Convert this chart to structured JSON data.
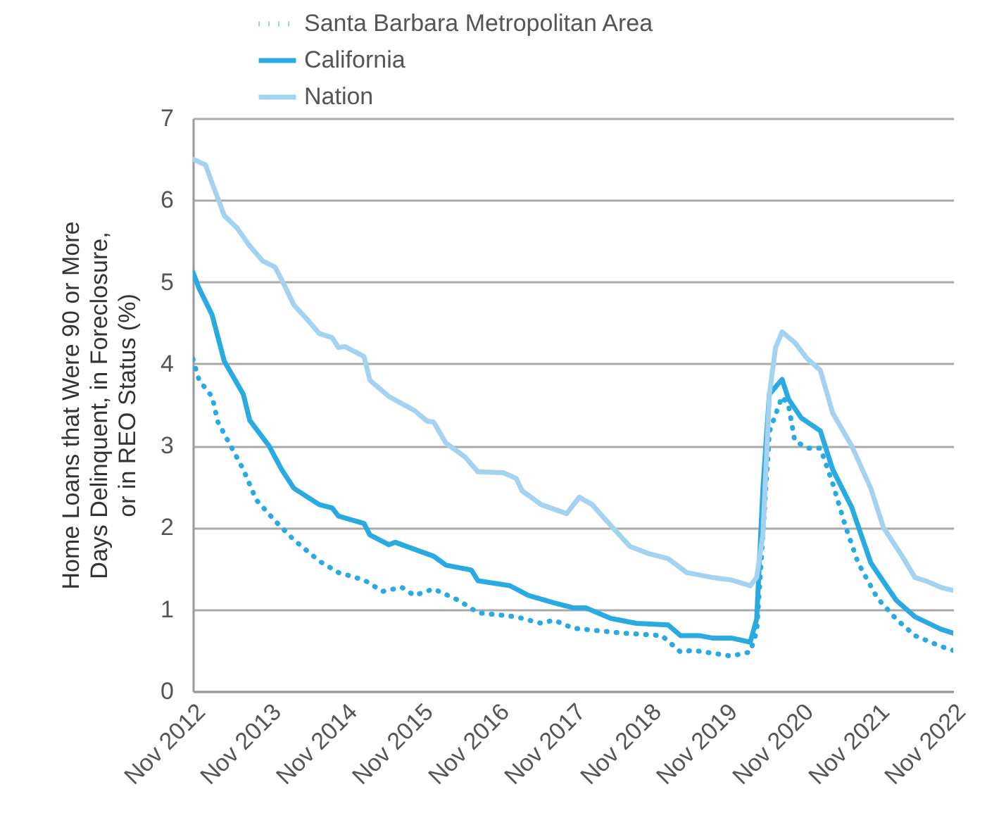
{
  "chart_data": {
    "type": "line",
    "ylabel": "Home Loans that Were 90 or More\nDays Delinquent, in Foreclosure,\nor in REO Status (%)",
    "xlim": [
      "2012-11",
      "2022-11"
    ],
    "xticks": [
      {
        "value": "2012-11",
        "label": "Nov 2012"
      },
      {
        "value": "2013-11",
        "label": "Nov 2013"
      },
      {
        "value": "2014-11",
        "label": "Nov 2014"
      },
      {
        "value": "2015-11",
        "label": "Nov 2015"
      },
      {
        "value": "2016-11",
        "label": "Nov 2016"
      },
      {
        "value": "2017-11",
        "label": "Nov 2017"
      },
      {
        "value": "2018-11",
        "label": "Nov 2018"
      },
      {
        "value": "2019-11",
        "label": "Nov 2019"
      },
      {
        "value": "2020-11",
        "label": "Nov 2020"
      },
      {
        "value": "2021-11",
        "label": "Nov 2021"
      },
      {
        "value": "2022-11",
        "label": "Nov 2022"
      }
    ],
    "ylim": [
      0,
      7
    ],
    "yticks": [
      0,
      1,
      2,
      3,
      4,
      5,
      6,
      7
    ],
    "grid": "y",
    "legend": "top",
    "series": [
      {
        "name": "Santa Barbara Metropolitan Area",
        "color": "#29abe2",
        "line_style": "dotted",
        "x": [
          "2012-11",
          "2012-12",
          "2013-02",
          "2013-03",
          "2013-05",
          "2013-07",
          "2013-09",
          "2013-12",
          "2014-03",
          "2014-07",
          "2014-10",
          "2015-02",
          "2015-05",
          "2015-08",
          "2015-10",
          "2016-01",
          "2016-05",
          "2016-08",
          "2017-02",
          "2017-06",
          "2017-08",
          "2017-11",
          "2018-07",
          "2019-01",
          "2019-04",
          "2019-06",
          "2019-12",
          "2020-03",
          "2020-04",
          "2020-05",
          "2020-06",
          "2020-08",
          "2020-09",
          "2020-10",
          "2020-12",
          "2021-02",
          "2021-04",
          "2021-06",
          "2021-08",
          "2021-11",
          "2022-02",
          "2022-05",
          "2022-09",
          "2022-11"
        ],
        "values": [
          4.06,
          3.8,
          3.6,
          3.29,
          3.0,
          2.71,
          2.34,
          2.08,
          1.85,
          1.59,
          1.45,
          1.36,
          1.22,
          1.27,
          1.17,
          1.25,
          1.11,
          0.96,
          0.91,
          0.83,
          0.87,
          0.77,
          0.71,
          0.68,
          0.48,
          0.5,
          0.43,
          0.48,
          0.73,
          1.91,
          3.17,
          3.6,
          3.49,
          3.06,
          2.97,
          2.97,
          2.54,
          2.02,
          1.57,
          1.14,
          0.88,
          0.68,
          0.55,
          0.5
        ]
      },
      {
        "name": "California",
        "color": "#29abe2",
        "line_style": "solid",
        "x": [
          "2012-11",
          "2012-12",
          "2013-02",
          "2013-04",
          "2013-07",
          "2013-08",
          "2013-11",
          "2014-01",
          "2014-03",
          "2014-07",
          "2014-09",
          "2014-10",
          "2015-02",
          "2015-03",
          "2015-06",
          "2015-07",
          "2016-01",
          "2016-03",
          "2016-07",
          "2016-08",
          "2017-01",
          "2017-04",
          "2017-08",
          "2017-11",
          "2018-01",
          "2018-05",
          "2018-09",
          "2019-02",
          "2019-04",
          "2019-07",
          "2019-09",
          "2019-12",
          "2020-03",
          "2020-04",
          "2020-05",
          "2020-06",
          "2020-08",
          "2020-09",
          "2020-11",
          "2021-02",
          "2021-04",
          "2021-07",
          "2021-10",
          "2021-12",
          "2022-02",
          "2022-05",
          "2022-09",
          "2022-11"
        ],
        "values": [
          5.12,
          4.92,
          4.6,
          4.03,
          3.63,
          3.31,
          3.0,
          2.71,
          2.48,
          2.28,
          2.24,
          2.14,
          2.05,
          1.91,
          1.79,
          1.82,
          1.65,
          1.54,
          1.48,
          1.35,
          1.29,
          1.17,
          1.08,
          1.02,
          1.02,
          0.89,
          0.83,
          0.81,
          0.68,
          0.68,
          0.65,
          0.65,
          0.6,
          0.88,
          2.48,
          3.63,
          3.81,
          3.57,
          3.34,
          3.18,
          2.71,
          2.25,
          1.57,
          1.34,
          1.11,
          0.91,
          0.76,
          0.71
        ]
      },
      {
        "name": "Nation",
        "color": "#a3d3f0",
        "line_style": "solid",
        "x": [
          "2012-11",
          "2013-01",
          "2013-02",
          "2013-04",
          "2013-06",
          "2013-08",
          "2013-10",
          "2013-12",
          "2014-01",
          "2014-03",
          "2014-05",
          "2014-07",
          "2014-09",
          "2014-10",
          "2014-11",
          "2015-02",
          "2015-03",
          "2015-06",
          "2015-10",
          "2015-12",
          "2016-01",
          "2016-03",
          "2016-06",
          "2016-08",
          "2016-12",
          "2017-02",
          "2017-03",
          "2017-06",
          "2017-10",
          "2017-12",
          "2018-02",
          "2018-04",
          "2018-08",
          "2018-11",
          "2019-02",
          "2019-05",
          "2019-09",
          "2019-12",
          "2020-03",
          "2020-04",
          "2020-05",
          "2020-06",
          "2020-07",
          "2020-08",
          "2020-10",
          "2020-12",
          "2021-02",
          "2021-04",
          "2021-07",
          "2021-10",
          "2021-12",
          "2022-03",
          "2022-05",
          "2022-07",
          "2022-09",
          "2022-11"
        ],
        "values": [
          6.5,
          6.43,
          6.21,
          5.81,
          5.66,
          5.44,
          5.26,
          5.18,
          5.03,
          4.72,
          4.55,
          4.37,
          4.32,
          4.2,
          4.21,
          4.09,
          3.8,
          3.6,
          3.43,
          3.3,
          3.29,
          3.03,
          2.86,
          2.68,
          2.67,
          2.6,
          2.45,
          2.28,
          2.17,
          2.37,
          2.28,
          2.11,
          1.77,
          1.68,
          1.62,
          1.45,
          1.39,
          1.36,
          1.29,
          1.39,
          1.91,
          3.63,
          4.2,
          4.39,
          4.26,
          4.06,
          3.92,
          3.4,
          3.0,
          2.48,
          2.0,
          1.65,
          1.39,
          1.34,
          1.27,
          1.23
        ]
      }
    ]
  }
}
